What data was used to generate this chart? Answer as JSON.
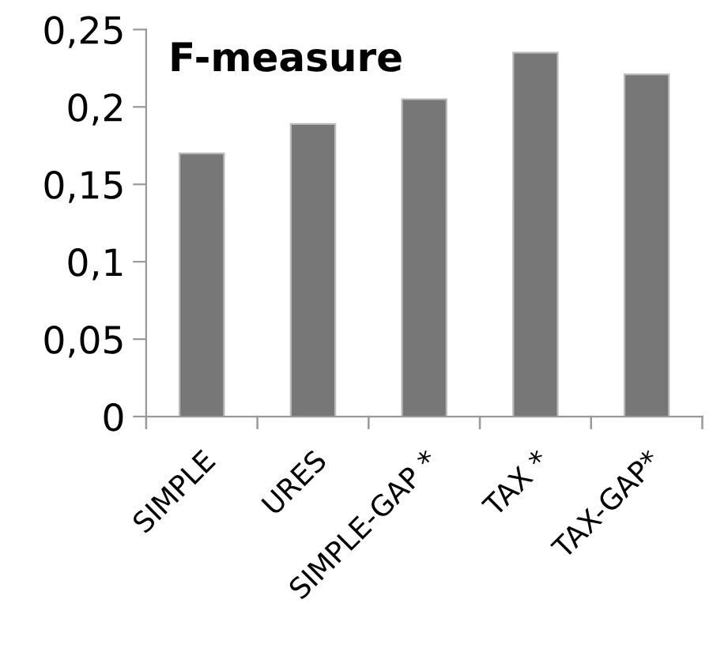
{
  "chart_data": {
    "type": "bar",
    "title": "F-measure",
    "categories": [
      "SIMPLE",
      "URES",
      "SIMPLE-GAP *",
      "TAX *",
      "TAX-GAP*"
    ],
    "values": [
      0.17,
      0.189,
      0.205,
      0.235,
      0.221
    ],
    "color": "#777777",
    "ylim": [
      0,
      0.25
    ],
    "yticks": [
      {
        "value": 0,
        "label": "0"
      },
      {
        "value": 0.05,
        "label": "0,05"
      },
      {
        "value": 0.1,
        "label": "0,1"
      },
      {
        "value": 0.15,
        "label": "0,15"
      },
      {
        "value": 0.2,
        "label": "0,2"
      },
      {
        "value": 0.25,
        "label": "0,25"
      }
    ],
    "grid": false
  }
}
